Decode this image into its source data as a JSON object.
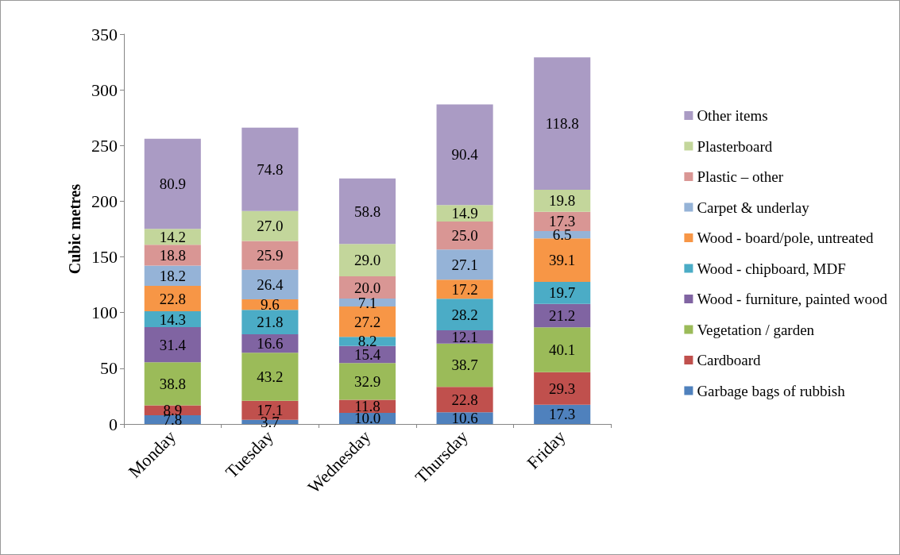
{
  "chart_data": {
    "type": "bar",
    "stacked": true,
    "ylabel": "Cubic metres",
    "categories": [
      "Monday",
      "Tuesday",
      "Wednesday",
      "Thursday",
      "Friday"
    ],
    "ylim": [
      0,
      350
    ],
    "yticks": [
      0,
      50,
      100,
      150,
      200,
      250,
      300,
      350
    ],
    "grid": false,
    "legend": "right",
    "series": [
      {
        "name": "Garbage bags of rubbish",
        "color": "#4f81bd",
        "values": [
          7.8,
          3.7,
          10.0,
          10.6,
          17.3
        ],
        "value_labels": [
          "7.8",
          "3.7",
          "10.0",
          "10.6",
          "17.3"
        ]
      },
      {
        "name": "Cardboard",
        "color": "#c0504d",
        "values": [
          8.9,
          17.1,
          11.8,
          22.8,
          29.3
        ],
        "value_labels": [
          "8.9",
          "17.1",
          "11.8",
          "22.8",
          "29.3"
        ]
      },
      {
        "name": "Vegetation / garden",
        "color": "#9bbb59",
        "values": [
          38.8,
          43.2,
          32.9,
          38.7,
          40.1
        ],
        "value_labels": [
          "38.8",
          "43.2",
          "32.9",
          "38.7",
          "40.1"
        ]
      },
      {
        "name": "Wood - furniture, painted wood",
        "color": "#8064a2",
        "values": [
          31.4,
          16.6,
          15.4,
          12.1,
          21.2
        ],
        "value_labels": [
          "31.4",
          "16.6",
          "15.4",
          "12.1",
          "21.2"
        ]
      },
      {
        "name": "Wood - chipboard, MDF",
        "color": "#4bacc6",
        "values": [
          14.3,
          21.8,
          8.2,
          28.2,
          19.7
        ],
        "value_labels": [
          "14.3",
          "21.8",
          "8.2",
          "28.2",
          "19.7"
        ]
      },
      {
        "name": "Wood - board/pole, untreated",
        "color": "#f79646",
        "values": [
          22.8,
          9.6,
          27.2,
          17.2,
          39.1
        ],
        "value_labels": [
          "22.8",
          "9.6",
          "27.2",
          "17.2",
          "39.1"
        ]
      },
      {
        "name": "Carpet & underlay",
        "color": "#95b3d7",
        "values": [
          18.2,
          26.4,
          7.1,
          27.1,
          6.5
        ],
        "value_labels": [
          "18.2",
          "26.4",
          "7.1",
          "27.1",
          "6.5"
        ]
      },
      {
        "name": "Plastic – other",
        "color": "#d99694",
        "values": [
          18.8,
          25.9,
          20.0,
          25.0,
          17.3
        ],
        "value_labels": [
          "18.8",
          "25.9",
          "20.0",
          "25.0",
          "17.3"
        ]
      },
      {
        "name": "Plasterboard",
        "color": "#c3d69b",
        "values": [
          14.2,
          27.0,
          29.0,
          14.9,
          19.8
        ],
        "value_labels": [
          "14.2",
          "27.0",
          "29.0",
          "14.9",
          "19.8"
        ]
      },
      {
        "name": "Other items",
        "color": "#aa9bc4",
        "values": [
          80.9,
          74.8,
          58.8,
          90.4,
          118.8
        ],
        "value_labels": [
          "80.9",
          "74.8",
          "58.8",
          "90.4",
          "118.8"
        ]
      }
    ]
  }
}
